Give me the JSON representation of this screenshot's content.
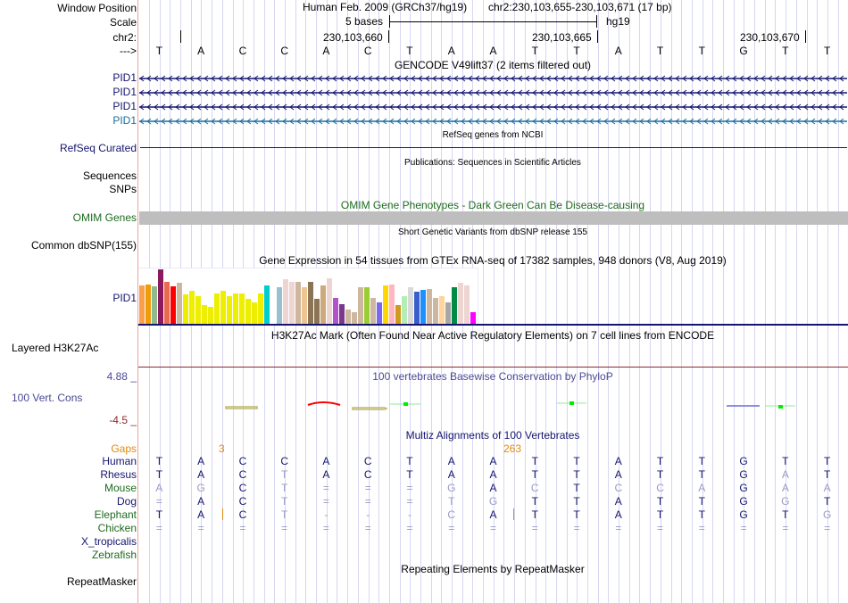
{
  "header": {
    "window_position_label": "Window Position",
    "scale_label": "Scale",
    "chrom_label": "chr2:",
    "strand_label": "--->",
    "assembly": "Human Feb. 2009 (GRCh37/hg19)",
    "position": "chr2:230,103,655-230,103,671 (17 bp)",
    "scale_text": "5 bases",
    "scale_db": "hg19",
    "coord_ticks": [
      "230,103,660",
      "230,103,665",
      "230,103,670"
    ]
  },
  "sequence": [
    "T",
    "A",
    "C",
    "C",
    "A",
    "C",
    "T",
    "A",
    "A",
    "T",
    "T",
    "A",
    "T",
    "T",
    "G",
    "T",
    "T"
  ],
  "gencode": {
    "title": "GENCODE V49lift37 (2 items filtered out)",
    "items": [
      {
        "label": "PID1",
        "color": "#151570"
      },
      {
        "label": "PID1",
        "color": "#151570"
      },
      {
        "label": "PID1",
        "color": "#151570"
      },
      {
        "label": "PID1",
        "color": "#1a6e9e"
      }
    ]
  },
  "refseq": {
    "title": "RefSeq genes from NCBI",
    "label": "RefSeq Curated"
  },
  "publications": {
    "title": "Publications: Sequences in Scientific Articles",
    "label_line1": "Sequences",
    "label_line2": "SNPs"
  },
  "omim": {
    "title": "OMIM Gene Phenotypes - Dark Green Can Be Disease-causing",
    "label": "OMIM Genes"
  },
  "dbsnp": {
    "title": "Short Genetic Variants from dbSNP release 155",
    "label": "Common dbSNP(155)"
  },
  "gtex": {
    "title": "Gene Expression in 54 tissues from GTEx RNA-seq of 17382 samples, 948 donors (V8, Aug 2019)",
    "label": "PID1",
    "bars": [
      {
        "c": "#f9a04a",
        "v": 0.71
      },
      {
        "c": "#ef9b0e",
        "v": 0.73
      },
      {
        "c": "#8fbc8f",
        "v": 0.7
      },
      {
        "c": "#8b1a5f",
        "v": 1.0
      },
      {
        "c": "#ea6a4f",
        "v": 0.78
      },
      {
        "c": "#ff0000",
        "v": 0.7
      },
      {
        "c": "#cdb79e",
        "v": 0.76
      },
      {
        "c": "#eeee00",
        "v": 0.55
      },
      {
        "c": "#eeee00",
        "v": 0.62
      },
      {
        "c": "#eeee00",
        "v": 0.52
      },
      {
        "c": "#eeee00",
        "v": 0.35
      },
      {
        "c": "#eeee00",
        "v": 0.33
      },
      {
        "c": "#eeee00",
        "v": 0.56
      },
      {
        "c": "#eeee00",
        "v": 0.62
      },
      {
        "c": "#eeee00",
        "v": 0.52
      },
      {
        "c": "#eeee00",
        "v": 0.57
      },
      {
        "c": "#eeee00",
        "v": 0.57
      },
      {
        "c": "#eeee00",
        "v": 0.46
      },
      {
        "c": "#eeee00",
        "v": 0.41
      },
      {
        "c": "#eeee00",
        "v": 0.57
      },
      {
        "c": "#00cdcd",
        "v": 0.71
      },
      {
        "c": "#ffffff",
        "v": 0.0
      },
      {
        "c": "#9ac0cd",
        "v": 0.68
      },
      {
        "c": "#eed5d2",
        "v": 0.83
      },
      {
        "c": "#eed5d2",
        "v": 0.78
      },
      {
        "c": "#cdb79e",
        "v": 0.78
      },
      {
        "c": "#eec591",
        "v": 0.68
      },
      {
        "c": "#8b7355",
        "v": 0.78
      },
      {
        "c": "#8b7355",
        "v": 0.46
      },
      {
        "c": "#cdaa7d",
        "v": 0.71
      },
      {
        "c": "#eed5d2",
        "v": 0.84
      },
      {
        "c": "#b452cd",
        "v": 0.49
      },
      {
        "c": "#7a378b",
        "v": 0.37
      },
      {
        "c": "#cdb79e",
        "v": 0.28
      },
      {
        "c": "#cdb79e",
        "v": 0.22
      },
      {
        "c": "#cdb79e",
        "v": 0.68
      },
      {
        "c": "#9acd32",
        "v": 0.68
      },
      {
        "c": "#cdb79e",
        "v": 0.49
      },
      {
        "c": "#7b68ee",
        "v": 0.4
      },
      {
        "c": "#ffd700",
        "v": 0.71
      },
      {
        "c": "#ffb6c1",
        "v": 0.73
      },
      {
        "c": "#cd9b1d",
        "v": 0.35
      },
      {
        "c": "#b4eeb4",
        "v": 0.52
      },
      {
        "c": "#d9d9d9",
        "v": 0.67
      },
      {
        "c": "#3a5fcd",
        "v": 0.59
      },
      {
        "c": "#1e90ff",
        "v": 0.63
      },
      {
        "c": "#cdb79e",
        "v": 0.65
      },
      {
        "c": "#cdb79e",
        "v": 0.49
      },
      {
        "c": "#ffd39b",
        "v": 0.51
      },
      {
        "c": "#a6a6a6",
        "v": 0.4
      },
      {
        "c": "#008b45",
        "v": 0.67
      },
      {
        "c": "#eed5d2",
        "v": 0.76
      },
      {
        "c": "#eed5d2",
        "v": 0.71
      },
      {
        "c": "#ff00ff",
        "v": 0.22
      }
    ]
  },
  "h3k27ac": {
    "title": "H3K27Ac Mark (Often Found Near Active Regulatory Elements) on 7 cell lines from ENCODE",
    "label": "Layered H3K27Ac"
  },
  "phylop": {
    "title": "100 vertebrates Basewise Conservation by PhyloP",
    "label": "100 Vert. Cons",
    "max_label": "4.88 _",
    "min_label": "-4.5 _"
  },
  "multiz": {
    "title": "Multiz Alignments of 100 Vertebrates",
    "gaps_label": "Gaps",
    "gap_markers": [
      {
        "after_index": 1,
        "count": "3"
      },
      {
        "after_index": 8,
        "count": "263"
      }
    ],
    "species": [
      {
        "name": "Human",
        "color": "#151570",
        "bases": [
          "T",
          "A",
          "C",
          "C",
          "A",
          "C",
          "T",
          "A",
          "A",
          "T",
          "T",
          "A",
          "T",
          "T",
          "G",
          "T",
          "T"
        ],
        "dim": [
          0,
          0,
          0,
          0,
          0,
          0,
          0,
          0,
          0,
          0,
          0,
          0,
          0,
          0,
          0,
          0,
          0
        ]
      },
      {
        "name": "Rhesus",
        "color": "#151570",
        "bases": [
          "T",
          "A",
          "C",
          "T",
          "A",
          "C",
          "T",
          "A",
          "A",
          "T",
          "T",
          "A",
          "T",
          "T",
          "G",
          "A",
          "T"
        ],
        "dim": [
          0,
          0,
          0,
          1,
          0,
          0,
          0,
          0,
          0,
          0,
          0,
          0,
          0,
          0,
          0,
          1,
          0
        ]
      },
      {
        "name": "Mouse",
        "color": "#1d6b1d",
        "bases": [
          "A",
          "G",
          "C",
          "T",
          "=",
          "=",
          "=",
          "G",
          "A",
          "C",
          "T",
          "C",
          "C",
          "A",
          "G",
          "A",
          "A"
        ],
        "dim": [
          1,
          1,
          0,
          1,
          1,
          1,
          1,
          1,
          0,
          1,
          0,
          1,
          1,
          1,
          0,
          1,
          1
        ]
      },
      {
        "name": "Dog",
        "color": "#151570",
        "bases": [
          "=",
          "A",
          "C",
          "T",
          "=",
          "=",
          "=",
          "T",
          "G",
          "T",
          "T",
          "A",
          "T",
          "T",
          "G",
          "G",
          "T"
        ],
        "dim": [
          1,
          0,
          0,
          1,
          1,
          1,
          1,
          1,
          1,
          0,
          0,
          0,
          0,
          0,
          0,
          1,
          0
        ]
      },
      {
        "name": "Elephant",
        "color": "#1d6b1d",
        "bases": [
          "T",
          "A",
          "C",
          "T",
          "-",
          "-",
          "-",
          "C",
          "A",
          "T",
          "T",
          "A",
          "T",
          "T",
          "G",
          "T",
          "G"
        ],
        "dim": [
          0,
          0,
          0,
          1,
          1,
          1,
          1,
          1,
          0,
          0,
          0,
          0,
          0,
          0,
          0,
          0,
          1
        ]
      },
      {
        "name": "Chicken",
        "color": "#1d6b1d",
        "bases": [
          "=",
          "=",
          "=",
          "=",
          "=",
          "=",
          "=",
          "=",
          "=",
          "=",
          "=",
          "=",
          "=",
          "=",
          "=",
          "=",
          "="
        ],
        "dim": [
          1,
          1,
          1,
          1,
          1,
          1,
          1,
          1,
          1,
          1,
          1,
          1,
          1,
          1,
          1,
          1,
          1
        ]
      },
      {
        "name": "X_tropicalis",
        "color": "#151570",
        "bases": [],
        "dim": []
      },
      {
        "name": "Zebrafish",
        "color": "#1d6b1d",
        "bases": [],
        "dim": []
      }
    ]
  },
  "repeatmasker": {
    "title": "Repeating Elements by RepeatMasker",
    "label": "RepeatMasker"
  }
}
